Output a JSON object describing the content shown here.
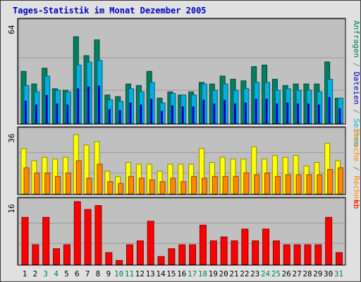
{
  "title": "Tages-Statistik im Monat Dezember 2005",
  "chart_data": [
    {
      "type": "bar",
      "panel": "top",
      "ymax_label": "64",
      "ylim": [
        0,
        64
      ],
      "categories": [
        "1",
        "2",
        "3",
        "4",
        "5",
        "6",
        "7",
        "8",
        "9",
        "10",
        "11",
        "12",
        "13",
        "14",
        "15",
        "16",
        "17",
        "18",
        "19",
        "20",
        "21",
        "22",
        "23",
        "24",
        "25",
        "26",
        "27",
        "28",
        "29",
        "30",
        "31"
      ],
      "weekend_days": [
        "3",
        "4",
        "10",
        "11",
        "17",
        "18",
        "24",
        "25",
        "31"
      ],
      "right_label_parts": [
        {
          "text": "Anfragen",
          "color": "#008060"
        },
        {
          "text": " / ",
          "color": "#808080"
        },
        {
          "text": "Dateien",
          "color": "#0000c0"
        },
        {
          "text": " / ",
          "color": "#808080"
        },
        {
          "text": "Seiten",
          "color": "#00b0e0"
        }
      ],
      "series": [
        {
          "name": "Anfragen",
          "color": "#008060",
          "values": [
            33,
            25,
            35,
            22,
            21,
            55,
            43,
            53,
            18,
            17,
            25,
            24,
            33,
            16,
            20,
            18,
            20,
            26,
            25,
            30,
            28,
            27,
            36,
            37,
            28,
            24,
            25,
            25,
            25,
            39,
            16
          ]
        },
        {
          "name": "Dateien",
          "color": "#00b0e0",
          "values": [
            24,
            20,
            30,
            21,
            20,
            37,
            39,
            40,
            15,
            14,
            22,
            20,
            26,
            13,
            19,
            18,
            18,
            25,
            21,
            25,
            21,
            22,
            26,
            26,
            21,
            22,
            21,
            21,
            20,
            28,
            16
          ]
        }
      ]
    },
    {
      "type": "bar",
      "panel": "middle",
      "ymax_label": "36",
      "ylim": [
        0,
        36
      ],
      "right_label_parts": [
        {
          "text": "Besuche",
          "color": "#ff8800"
        },
        {
          "text": " / ",
          "color": "#808080"
        },
        {
          "text": "Rechner",
          "color": "#ff8800"
        }
      ],
      "series": [
        {
          "name": "Besuche",
          "color": "#ffff00",
          "values": [
            26,
            19,
            21,
            20,
            21,
            34,
            28,
            30,
            13,
            10,
            18,
            17,
            17,
            13,
            17,
            17,
            17,
            26,
            18,
            21,
            20,
            20,
            27,
            20,
            22,
            21,
            22,
            16,
            18,
            29,
            19
          ]
        },
        {
          "name": "Rechner",
          "color": "#ff8800",
          "values": [
            15,
            12,
            12,
            10,
            12,
            19,
            9,
            17,
            7,
            6,
            10,
            9,
            8,
            7,
            9,
            7,
            10,
            9,
            10,
            10,
            10,
            12,
            11,
            12,
            10,
            11,
            11,
            11,
            11,
            14,
            15
          ]
        }
      ]
    },
    {
      "type": "bar",
      "panel": "bottom",
      "ymax_label": "16",
      "ylim": [
        0,
        16
      ],
      "right_label_parts": [
        {
          "text": "kb",
          "color": "#ff0000"
        }
      ],
      "series": [
        {
          "name": "kb",
          "color": "#ff0000",
          "values": [
            12,
            5,
            12,
            4,
            5,
            16,
            14,
            15,
            3,
            1,
            5,
            6,
            11,
            2,
            4,
            5,
            5,
            10,
            6,
            7,
            6,
            9,
            6,
            9,
            6,
            5,
            5,
            5,
            5,
            12,
            3
          ]
        }
      ]
    }
  ]
}
